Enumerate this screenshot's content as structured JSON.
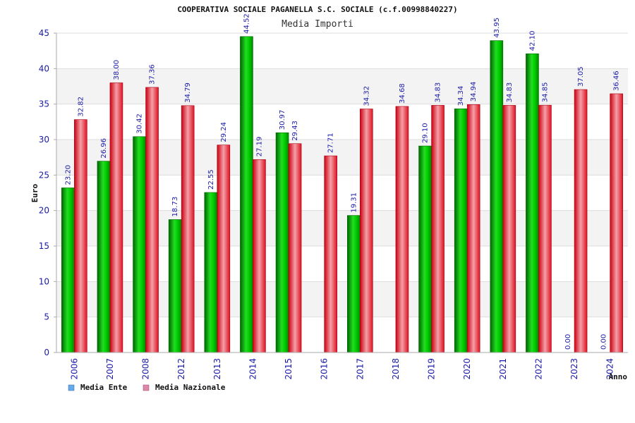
{
  "chart_data": {
    "type": "bar",
    "title": "COOPERATIVA SOCIALE PAGANELLA S.C. SOCIALE (c.f.00998840227)",
    "subtitle": "Media Importi",
    "xlabel": "Anno",
    "ylabel": "Euro",
    "ylim": [
      0,
      45
    ],
    "yticks": [
      0,
      5,
      10,
      15,
      20,
      25,
      30,
      35,
      40,
      45
    ],
    "grid": true,
    "legend_position": "bottom-left",
    "categories": [
      "2006",
      "2007",
      "2008",
      "2012",
      "2013",
      "2014",
      "2015",
      "2016",
      "2017",
      "2018",
      "2019",
      "2020",
      "2021",
      "2022",
      "2023",
      "2024"
    ],
    "series": [
      {
        "name": "Media Ente",
        "color": "#00bb00",
        "legend_color": "#66aaee",
        "values": [
          23.2,
          26.96,
          30.42,
          18.73,
          22.55,
          44.52,
          30.97,
          null,
          19.31,
          null,
          29.1,
          34.34,
          43.95,
          42.1,
          0.0,
          0.0
        ],
        "labels": [
          "23.20",
          "26.96",
          "30.42",
          "18.73",
          "22.55",
          "44.52",
          "30.97",
          "",
          "19.31",
          "",
          "29.10",
          "34.34",
          "43.95",
          "42.10",
          "0.00",
          "0.00"
        ]
      },
      {
        "name": "Media Nazionale",
        "color": "#ee2233",
        "legend_color": "#dd88aa",
        "values": [
          32.82,
          38.0,
          37.36,
          34.79,
          29.24,
          27.19,
          29.43,
          27.71,
          34.32,
          34.68,
          34.83,
          34.94,
          34.83,
          34.85,
          37.05,
          36.46
        ],
        "labels": [
          "32.82",
          "38.00",
          "37.36",
          "34.79",
          "29.24",
          "27.19",
          "29.43",
          "27.71",
          "34.32",
          "34.68",
          "34.83",
          "34.94",
          "34.83",
          "34.85",
          "37.05",
          "36.46"
        ]
      }
    ]
  }
}
